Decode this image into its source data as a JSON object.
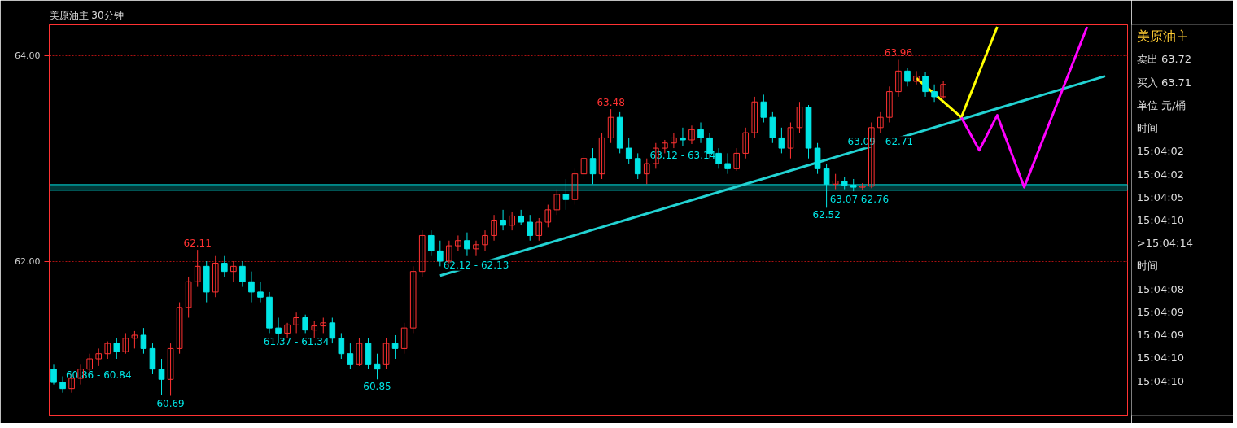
{
  "chart_data": {
    "type": "candlestick",
    "title": "美原油主  30分钟",
    "categories": [
      null,
      null,
      null,
      null,
      null,
      null,
      null,
      null,
      null,
      null,
      null,
      null,
      null,
      null,
      null,
      null,
      null,
      null,
      null,
      null,
      null,
      null,
      null,
      null,
      null,
      null,
      null,
      null,
      null,
      null,
      null,
      null,
      null,
      null,
      null,
      null,
      null,
      null,
      null,
      null,
      null,
      null,
      null,
      null,
      null,
      null,
      null,
      null,
      null,
      null,
      null,
      null,
      null,
      null,
      null,
      null,
      null,
      null,
      null,
      null,
      null,
      null,
      null,
      null,
      null,
      null,
      null,
      null,
      null,
      null,
      null,
      null,
      null,
      null,
      null,
      null,
      null,
      null,
      null,
      null,
      null,
      null,
      null,
      null,
      null,
      null,
      null,
      null,
      null,
      null,
      null,
      null,
      null,
      null,
      null,
      null,
      null,
      null,
      null,
      null,
      null,
      null,
      null,
      null,
      null,
      null,
      null,
      null,
      null,
      null,
      null,
      null,
      null,
      null,
      null,
      null,
      null,
      null,
      null,
      null
    ],
    "ohlc": [
      [
        60.95,
        61.0,
        60.8,
        60.82
      ],
      [
        60.82,
        60.88,
        60.72,
        60.76
      ],
      [
        60.76,
        60.9,
        60.72,
        60.86
      ],
      [
        60.86,
        61.0,
        60.8,
        60.95
      ],
      [
        60.95,
        61.1,
        60.9,
        61.05
      ],
      [
        61.05,
        61.15,
        60.98,
        61.1
      ],
      [
        61.1,
        61.22,
        61.05,
        61.2
      ],
      [
        61.2,
        61.25,
        61.05,
        61.12
      ],
      [
        61.12,
        61.3,
        61.1,
        61.25
      ],
      [
        61.25,
        61.32,
        61.15,
        61.28
      ],
      [
        61.28,
        61.35,
        61.1,
        61.15
      ],
      [
        61.15,
        61.2,
        60.9,
        60.95
      ],
      [
        60.95,
        61.05,
        60.7,
        60.85
      ],
      [
        60.85,
        61.2,
        60.69,
        61.15
      ],
      [
        61.15,
        61.6,
        61.1,
        61.55
      ],
      [
        61.55,
        61.85,
        61.45,
        61.8
      ],
      [
        61.8,
        62.11,
        61.75,
        61.95
      ],
      [
        61.95,
        62.0,
        61.6,
        61.7
      ],
      [
        61.7,
        62.05,
        61.65,
        61.98
      ],
      [
        61.98,
        62.05,
        61.85,
        61.9
      ],
      [
        61.9,
        62.0,
        61.8,
        61.95
      ],
      [
        61.95,
        62.0,
        61.75,
        61.8
      ],
      [
        61.8,
        61.9,
        61.6,
        61.7
      ],
      [
        61.7,
        61.8,
        61.6,
        61.65
      ],
      [
        61.65,
        61.7,
        61.3,
        61.35
      ],
      [
        61.35,
        61.45,
        61.2,
        61.3
      ],
      [
        61.3,
        61.4,
        61.25,
        61.38
      ],
      [
        61.38,
        61.5,
        61.3,
        61.45
      ],
      [
        61.45,
        61.48,
        61.3,
        61.33
      ],
      [
        61.33,
        61.42,
        61.25,
        61.37
      ],
      [
        61.37,
        61.45,
        61.3,
        61.4
      ],
      [
        61.4,
        61.45,
        61.2,
        61.25
      ],
      [
        61.25,
        61.3,
        61.05,
        61.1
      ],
      [
        61.1,
        61.2,
        60.95,
        61.0
      ],
      [
        61.0,
        61.25,
        60.98,
        61.2
      ],
      [
        61.2,
        61.25,
        60.95,
        61.0
      ],
      [
        61.0,
        61.1,
        60.85,
        60.95
      ],
      [
        61.0,
        61.25,
        60.95,
        61.2
      ],
      [
        61.2,
        61.28,
        61.05,
        61.15
      ],
      [
        61.15,
        61.4,
        61.1,
        61.35
      ],
      [
        61.35,
        61.95,
        61.3,
        61.9
      ],
      [
        61.9,
        62.3,
        61.85,
        62.25
      ],
      [
        62.25,
        62.3,
        62.05,
        62.1
      ],
      [
        62.1,
        62.2,
        61.95,
        62.0
      ],
      [
        62.0,
        62.2,
        61.98,
        62.15
      ],
      [
        62.15,
        62.25,
        62.1,
        62.2
      ],
      [
        62.2,
        62.28,
        62.05,
        62.12
      ],
      [
        62.12,
        62.2,
        62.05,
        62.16
      ],
      [
        62.16,
        62.3,
        62.1,
        62.25
      ],
      [
        62.25,
        62.45,
        62.2,
        62.4
      ],
      [
        62.4,
        62.5,
        62.3,
        62.35
      ],
      [
        62.35,
        62.48,
        62.3,
        62.44
      ],
      [
        62.44,
        62.5,
        62.35,
        62.38
      ],
      [
        62.38,
        62.45,
        62.2,
        62.25
      ],
      [
        62.25,
        62.42,
        62.2,
        62.38
      ],
      [
        62.38,
        62.55,
        62.33,
        62.5
      ],
      [
        62.5,
        62.7,
        62.45,
        62.65
      ],
      [
        62.65,
        62.8,
        62.5,
        62.6
      ],
      [
        62.6,
        62.9,
        62.55,
        62.85
      ],
      [
        62.85,
        63.05,
        62.8,
        63.0
      ],
      [
        63.0,
        63.1,
        62.75,
        62.85
      ],
      [
        62.85,
        63.25,
        62.8,
        63.2
      ],
      [
        63.2,
        63.48,
        63.15,
        63.4
      ],
      [
        63.4,
        63.45,
        63.05,
        63.1
      ],
      [
        63.1,
        63.2,
        62.95,
        63.0
      ],
      [
        63.0,
        63.05,
        62.8,
        62.85
      ],
      [
        62.85,
        63.0,
        62.75,
        62.95
      ],
      [
        62.95,
        63.15,
        62.9,
        63.1
      ],
      [
        63.1,
        63.18,
        63.05,
        63.15
      ],
      [
        63.15,
        63.25,
        63.1,
        63.2
      ],
      [
        63.2,
        63.3,
        63.12,
        63.18
      ],
      [
        63.18,
        63.32,
        63.14,
        63.28
      ],
      [
        63.28,
        63.35,
        63.15,
        63.2
      ],
      [
        63.2,
        63.25,
        63.0,
        63.05
      ],
      [
        63.05,
        63.1,
        62.9,
        62.95
      ],
      [
        62.95,
        63.05,
        62.85,
        62.9
      ],
      [
        62.9,
        63.1,
        62.88,
        63.05
      ],
      [
        63.05,
        63.3,
        63.0,
        63.25
      ],
      [
        63.25,
        63.6,
        63.2,
        63.55
      ],
      [
        63.55,
        63.62,
        63.35,
        63.4
      ],
      [
        63.4,
        63.45,
        63.15,
        63.2
      ],
      [
        63.2,
        63.3,
        63.05,
        63.1
      ],
      [
        63.1,
        63.35,
        63.0,
        63.3
      ],
      [
        63.3,
        63.55,
        63.25,
        63.5
      ],
      [
        63.5,
        63.52,
        63.0,
        63.1
      ],
      [
        63.1,
        63.15,
        62.85,
        62.9
      ],
      [
        62.9,
        62.95,
        62.52,
        62.75
      ],
      [
        62.75,
        62.85,
        62.7,
        62.78
      ],
      [
        62.78,
        62.82,
        62.7,
        62.74
      ],
      [
        62.74,
        62.8,
        62.68,
        62.72
      ],
      [
        62.72,
        62.76,
        62.69,
        62.73
      ],
      [
        62.73,
        63.35,
        62.71,
        63.3
      ],
      [
        63.3,
        63.45,
        63.25,
        63.4
      ],
      [
        63.4,
        63.7,
        63.35,
        63.65
      ],
      [
        63.65,
        63.96,
        63.6,
        63.85
      ],
      [
        63.85,
        63.88,
        63.7,
        63.75
      ],
      [
        63.75,
        63.85,
        63.72,
        63.8
      ],
      [
        63.8,
        63.84,
        63.6,
        63.65
      ],
      [
        63.65,
        63.72,
        63.55,
        63.6
      ],
      [
        63.6,
        63.75,
        63.58,
        63.72
      ],
      null,
      null,
      null,
      null,
      null,
      null,
      null,
      null,
      null,
      null,
      null,
      null,
      null,
      null,
      null,
      null,
      null,
      null,
      null,
      null
    ],
    "colors": [
      "#00e5e5",
      "#00e5e5",
      "#ff3232",
      "#ff3232",
      "#ff3232",
      "#ff3232",
      "#ff3232",
      "#00e5e5",
      "#ff3232",
      "#ff3232",
      "#00e5e5",
      "#00e5e5",
      "#00e5e5",
      "#ff3232",
      "#ff3232",
      "#ff3232",
      "#ff3232",
      "#00e5e5",
      "#ff3232",
      "#00e5e5",
      "#ff3232",
      "#00e5e5",
      "#00e5e5",
      "#00e5e5",
      "#00e5e5",
      "#00e5e5",
      "#ff3232",
      "#ff3232",
      "#00e5e5",
      "#ff3232",
      "#ff3232",
      "#00e5e5",
      "#00e5e5",
      "#00e5e5",
      "#ff3232",
      "#00e5e5",
      "#00e5e5",
      "#ff3232",
      "#00e5e5",
      "#ff3232",
      "#ff3232",
      "#ff3232",
      "#00e5e5",
      "#00e5e5",
      "#ff3232",
      "#ff3232",
      "#00e5e5",
      "#ff3232",
      "#ff3232",
      "#ff3232",
      "#00e5e5",
      "#ff3232",
      "#00e5e5",
      "#00e5e5",
      "#ff3232",
      "#ff3232",
      "#ff3232",
      "#00e5e5",
      "#ff3232",
      "#ff3232",
      "#00e5e5",
      "#ff3232",
      "#ff3232",
      "#00e5e5",
      "#00e5e5",
      "#00e5e5",
      "#ff3232",
      "#ff3232",
      "#ff3232",
      "#ff3232",
      "#00e5e5",
      "#ff3232",
      "#00e5e5",
      "#00e5e5",
      "#00e5e5",
      "#00e5e5",
      "#ff3232",
      "#ff3232",
      "#ff3232",
      "#00e5e5",
      "#00e5e5",
      "#00e5e5",
      "#ff3232",
      "#ff3232",
      "#00e5e5",
      "#00e5e5",
      "#00e5e5",
      "#ff3232",
      "#00e5e5",
      "#00e5e5",
      "#ff3232",
      "#ff3232",
      "#ff3232",
      "#ff3232",
      "#ff3232",
      "#00e5e5",
      "#ff3232",
      "#00e5e5",
      "#00e5e5",
      "#ff3232",
      null,
      null,
      null,
      null,
      null,
      null,
      null,
      null,
      null,
      null,
      null,
      null,
      null,
      null,
      null,
      null,
      null,
      null,
      null,
      null
    ],
    "series": [
      {
        "type": "line",
        "color": "#22d3d3",
        "values": [
          null,
          null,
          null,
          null,
          null,
          null,
          null,
          null,
          null,
          null,
          null,
          null,
          null,
          null,
          null,
          null,
          null,
          null,
          null,
          null,
          null,
          null,
          null,
          null,
          null,
          null,
          null,
          null,
          null,
          null,
          null,
          null,
          null,
          null,
          null,
          null,
          null,
          null,
          null,
          null,
          null,
          null,
          null,
          61.86,
          null,
          null,
          null,
          null,
          null,
          null,
          null,
          null,
          null,
          null,
          null,
          null,
          null,
          null,
          null,
          null,
          null,
          null,
          null,
          null,
          null,
          null,
          null,
          null,
          null,
          null,
          null,
          null,
          null,
          null,
          null,
          null,
          null,
          null,
          null,
          null,
          null,
          null,
          null,
          null,
          null,
          null,
          null,
          null,
          null,
          null,
          null,
          null,
          null,
          null,
          null,
          null,
          null,
          null,
          null,
          null,
          null,
          null,
          null,
          null,
          null,
          null,
          null,
          null,
          null,
          null,
          null,
          null,
          null,
          null,
          null,
          null,
          null,
          63.8,
          null,
          null
        ]
      },
      {
        "type": "line",
        "color": "#ffff00",
        "values": [
          null,
          null,
          null,
          null,
          null,
          null,
          null,
          null,
          null,
          null,
          null,
          null,
          null,
          null,
          null,
          null,
          null,
          null,
          null,
          null,
          null,
          null,
          null,
          null,
          null,
          null,
          null,
          null,
          null,
          null,
          null,
          null,
          null,
          null,
          null,
          null,
          null,
          null,
          null,
          null,
          null,
          null,
          null,
          null,
          null,
          null,
          null,
          null,
          null,
          null,
          null,
          null,
          null,
          null,
          null,
          null,
          null,
          null,
          null,
          null,
          null,
          null,
          null,
          null,
          null,
          null,
          null,
          null,
          null,
          null,
          null,
          null,
          null,
          null,
          null,
          null,
          null,
          null,
          null,
          null,
          null,
          null,
          null,
          null,
          null,
          null,
          null,
          null,
          null,
          null,
          null,
          null,
          null,
          null,
          null,
          null,
          63.78,
          null,
          null,
          null,
          null,
          63.4,
          null,
          null,
          null,
          64.28,
          null,
          null,
          null,
          null,
          null,
          null,
          null,
          null,
          null,
          null,
          null,
          null,
          null,
          null
        ]
      },
      {
        "type": "line",
        "color": "#ff00ff",
        "values": [
          null,
          null,
          null,
          null,
          null,
          null,
          null,
          null,
          null,
          null,
          null,
          null,
          null,
          null,
          null,
          null,
          null,
          null,
          null,
          null,
          null,
          null,
          null,
          null,
          null,
          null,
          null,
          null,
          null,
          null,
          null,
          null,
          null,
          null,
          null,
          null,
          null,
          null,
          null,
          null,
          null,
          null,
          null,
          null,
          null,
          null,
          null,
          null,
          null,
          null,
          null,
          null,
          null,
          null,
          null,
          null,
          null,
          null,
          null,
          null,
          null,
          null,
          null,
          null,
          null,
          null,
          null,
          null,
          null,
          null,
          null,
          null,
          null,
          null,
          null,
          null,
          null,
          null,
          null,
          null,
          null,
          null,
          null,
          null,
          null,
          null,
          null,
          null,
          null,
          null,
          null,
          null,
          null,
          null,
          null,
          null,
          null,
          null,
          null,
          null,
          null,
          63.4,
          null,
          63.08,
          null,
          63.42,
          null,
          null,
          62.72,
          null,
          null,
          null,
          null,
          null,
          null,
          64.28,
          null,
          null,
          null,
          null
        ]
      }
    ],
    "value_labels": [
      null,
      null,
      null,
      null,
      null,
      "60.86 - 60.84",
      null,
      null,
      null,
      null,
      null,
      null,
      null,
      "60.69",
      null,
      null,
      "62.11",
      null,
      null,
      null,
      null,
      null,
      null,
      null,
      null,
      null,
      null,
      "61.37 - 61.34",
      null,
      null,
      null,
      null,
      null,
      null,
      null,
      null,
      "60.85",
      null,
      null,
      null,
      null,
      null,
      null,
      null,
      null,
      null,
      null,
      "62.12 - 62.13",
      null,
      null,
      null,
      null,
      null,
      null,
      null,
      null,
      null,
      null,
      null,
      null,
      null,
      null,
      "63.48",
      null,
      null,
      null,
      null,
      null,
      null,
      null,
      "63.12 - 63.14",
      null,
      null,
      null,
      null,
      null,
      null,
      null,
      null,
      null,
      null,
      null,
      null,
      null,
      null,
      null,
      "62.52",
      null,
      null,
      null,
      "63.07   62.76",
      null,
      "63.09 - 62.71",
      null,
      "63.96",
      null,
      null,
      null,
      null,
      null,
      null,
      null,
      null,
      null,
      null,
      null,
      null,
      null,
      null,
      null,
      null,
      null,
      null,
      null,
      null,
      null,
      null,
      null,
      null,
      null
    ],
    "bands": [
      {
        "axis": "y",
        "from": 62.69,
        "to": 62.745,
        "color": "#00e5e5"
      }
    ],
    "ylim": [
      60.5,
      64.3
    ],
    "yticks": [
      {
        "value": 62,
        "label": "62.00"
      },
      {
        "value": 64,
        "label": "64.00"
      }
    ],
    "tick_labels": "y",
    "grid": "y",
    "annotations": [
      "美原油主",
      "卖出 63.72",
      "买入 63.71",
      "单位 元/桶",
      "时间",
      "15:04:02",
      "15:04:02",
      "15:04:05",
      "15:04:10",
      ">15:04:14",
      "时间",
      "15:04:08",
      "15:04:09",
      "15:04:09",
      "15:04:10",
      "15:04:10"
    ]
  }
}
